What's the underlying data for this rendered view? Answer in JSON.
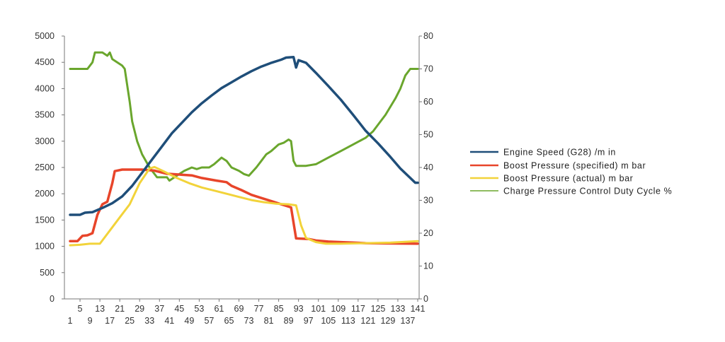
{
  "chart_data": {
    "type": "line",
    "title": "",
    "xlabel": "",
    "ylabel": "",
    "x_range": [
      1,
      141
    ],
    "x_tick_labels_upper": [
      "5",
      "13",
      "21",
      "29",
      "37",
      "45",
      "53",
      "61",
      "69",
      "77",
      "85",
      "93",
      "101",
      "109",
      "117",
      "125",
      "133",
      "141"
    ],
    "x_tick_labels_lower": [
      "1",
      "9",
      "17",
      "25",
      "33",
      "41",
      "49",
      "57",
      "65",
      "73",
      "81",
      "89",
      "97",
      "105",
      "113",
      "121",
      "129",
      "137"
    ],
    "y_left": {
      "min": 0,
      "max": 5000,
      "step": 500,
      "ticks": [
        "0",
        "500",
        "1000",
        "1500",
        "2000",
        "2500",
        "3000",
        "3500",
        "4000",
        "4500",
        "5000"
      ]
    },
    "y_right": {
      "min": 0,
      "max": 80,
      "step": 10,
      "ticks": [
        "0",
        "10",
        "20",
        "30",
        "40",
        "50",
        "60",
        "70",
        "80"
      ]
    },
    "grid": false,
    "legend_position": "right",
    "series": [
      {
        "name": "Engine Speed (G28)  /m in",
        "color": "#1f4e79",
        "axis": "left",
        "points": [
          [
            1,
            1600
          ],
          [
            5,
            1600
          ],
          [
            7,
            1640
          ],
          [
            10,
            1650
          ],
          [
            14,
            1730
          ],
          [
            18,
            1820
          ],
          [
            22,
            1950
          ],
          [
            26,
            2150
          ],
          [
            30,
            2400
          ],
          [
            34,
            2650
          ],
          [
            38,
            2900
          ],
          [
            42,
            3150
          ],
          [
            46,
            3350
          ],
          [
            50,
            3550
          ],
          [
            54,
            3720
          ],
          [
            58,
            3870
          ],
          [
            62,
            4010
          ],
          [
            66,
            4120
          ],
          [
            70,
            4230
          ],
          [
            74,
            4330
          ],
          [
            78,
            4420
          ],
          [
            82,
            4490
          ],
          [
            86,
            4550
          ],
          [
            88,
            4590
          ],
          [
            91,
            4600
          ],
          [
            92,
            4400
          ],
          [
            93,
            4540
          ],
          [
            96,
            4490
          ],
          [
            100,
            4300
          ],
          [
            105,
            4050
          ],
          [
            110,
            3790
          ],
          [
            115,
            3500
          ],
          [
            120,
            3200
          ],
          [
            125,
            2960
          ],
          [
            130,
            2700
          ],
          [
            134,
            2480
          ],
          [
            138,
            2300
          ],
          [
            140,
            2210
          ],
          [
            141,
            2210
          ]
        ]
      },
      {
        "name": "Boost Pressure (specified)  m bar",
        "color": "#e8452a",
        "axis": "left",
        "points": [
          [
            1,
            1100
          ],
          [
            4,
            1100
          ],
          [
            5,
            1150
          ],
          [
            6,
            1200
          ],
          [
            8,
            1210
          ],
          [
            10,
            1250
          ],
          [
            12,
            1600
          ],
          [
            14,
            1800
          ],
          [
            16,
            1850
          ],
          [
            18,
            2200
          ],
          [
            19,
            2430
          ],
          [
            22,
            2460
          ],
          [
            30,
            2460
          ],
          [
            35,
            2440
          ],
          [
            40,
            2380
          ],
          [
            50,
            2350
          ],
          [
            54,
            2300
          ],
          [
            60,
            2250
          ],
          [
            64,
            2220
          ],
          [
            66,
            2150
          ],
          [
            70,
            2070
          ],
          [
            74,
            1980
          ],
          [
            78,
            1920
          ],
          [
            82,
            1860
          ],
          [
            86,
            1800
          ],
          [
            90,
            1740
          ],
          [
            92,
            1150
          ],
          [
            97,
            1140
          ],
          [
            100,
            1110
          ],
          [
            105,
            1090
          ],
          [
            110,
            1080
          ],
          [
            120,
            1060
          ],
          [
            141,
            1050
          ]
        ]
      },
      {
        "name": "Boost Pressure (actual)  m bar",
        "color": "#f2d33a",
        "axis": "left",
        "points": [
          [
            1,
            1020
          ],
          [
            5,
            1030
          ],
          [
            9,
            1050
          ],
          [
            13,
            1050
          ],
          [
            17,
            1300
          ],
          [
            21,
            1550
          ],
          [
            25,
            1800
          ],
          [
            29,
            2200
          ],
          [
            33,
            2480
          ],
          [
            35,
            2510
          ],
          [
            39,
            2420
          ],
          [
            44,
            2300
          ],
          [
            49,
            2200
          ],
          [
            54,
            2120
          ],
          [
            59,
            2060
          ],
          [
            64,
            2000
          ],
          [
            69,
            1940
          ],
          [
            74,
            1880
          ],
          [
            79,
            1840
          ],
          [
            84,
            1810
          ],
          [
            89,
            1800
          ],
          [
            92,
            1780
          ],
          [
            94,
            1400
          ],
          [
            96,
            1160
          ],
          [
            100,
            1080
          ],
          [
            104,
            1050
          ],
          [
            110,
            1050
          ],
          [
            120,
            1060
          ],
          [
            130,
            1070
          ],
          [
            141,
            1100
          ]
        ]
      },
      {
        "name": "Charge Pressure Control Duty Cycle  %",
        "color": "#6aa62d",
        "axis": "right",
        "points": [
          [
            1,
            70
          ],
          [
            8,
            70
          ],
          [
            10,
            72
          ],
          [
            11,
            75
          ],
          [
            14,
            75
          ],
          [
            16,
            74
          ],
          [
            17,
            75
          ],
          [
            18,
            73
          ],
          [
            20,
            72
          ],
          [
            22,
            71
          ],
          [
            23,
            70
          ],
          [
            24,
            65
          ],
          [
            25,
            60
          ],
          [
            26,
            54
          ],
          [
            28,
            48
          ],
          [
            30,
            44
          ],
          [
            33,
            40
          ],
          [
            36,
            37
          ],
          [
            38,
            37
          ],
          [
            40,
            37
          ],
          [
            41,
            36
          ],
          [
            43,
            37
          ],
          [
            47,
            39
          ],
          [
            50,
            40
          ],
          [
            52,
            39.5
          ],
          [
            54,
            40
          ],
          [
            57,
            40
          ],
          [
            59,
            41
          ],
          [
            62,
            43
          ],
          [
            64,
            42
          ],
          [
            66,
            40
          ],
          [
            69,
            39
          ],
          [
            71,
            38
          ],
          [
            73,
            37.5
          ],
          [
            76,
            40
          ],
          [
            78,
            42
          ],
          [
            80,
            44
          ],
          [
            82,
            45
          ],
          [
            85,
            47
          ],
          [
            87,
            47.5
          ],
          [
            89,
            48.5
          ],
          [
            90,
            48
          ],
          [
            91,
            42
          ],
          [
            92,
            40.5
          ],
          [
            96,
            40.5
          ],
          [
            100,
            41
          ],
          [
            105,
            43
          ],
          [
            110,
            45
          ],
          [
            115,
            47
          ],
          [
            120,
            49
          ],
          [
            123,
            51
          ],
          [
            126,
            54
          ],
          [
            128,
            56
          ],
          [
            130,
            58.5
          ],
          [
            132,
            61
          ],
          [
            134,
            64
          ],
          [
            136,
            68
          ],
          [
            138,
            70
          ],
          [
            141,
            70
          ]
        ]
      }
    ]
  }
}
